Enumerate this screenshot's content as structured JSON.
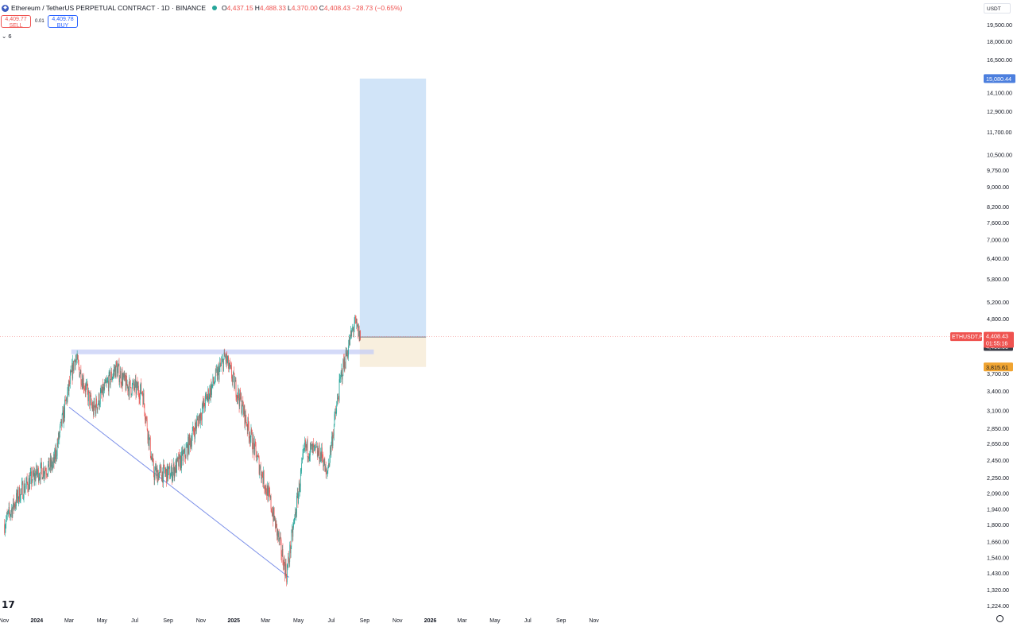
{
  "header": {
    "symbol_title": "Ethereum / TetherUS PERPETUAL CONTRACT · 1D · BINANCE",
    "open_label": "O",
    "open": "4,437.15",
    "high_label": "H",
    "high": "4,488.33",
    "low_label": "L",
    "low": "4,370.00",
    "close_label": "C",
    "close": "4,408.43",
    "change": "−28.73 (−0.65%)"
  },
  "trade": {
    "sell_price": "4,409.77",
    "sell_label": "SELL",
    "spread": "0.01",
    "buy_price": "4,409.78",
    "buy_label": "BUY"
  },
  "indicators_count": "6",
  "currency": "USDT",
  "colors": {
    "up": "#26a69a",
    "down": "#ef5350",
    "profit_zone": "#cfe3f8",
    "loss_zone": "#f8eedc",
    "trendline": "#7b8fe8"
  },
  "price_axis": {
    "ticks": [
      "19,500.00",
      "18,000.00",
      "16,500.00",
      "14,100.00",
      "12,900.00",
      "11,700.00",
      "10,500.00",
      "9,750.00",
      "9,000.00",
      "8,200.00",
      "7,600.00",
      "7,000.00",
      "6,400.00",
      "5,800.00",
      "5,200.00",
      "4,800.00",
      "3,700.00",
      "3,400.00",
      "3,100.00",
      "2,850.00",
      "2,650.00",
      "2,450.00",
      "2,250.00",
      "2,090.00",
      "1,940.00",
      "1,800.00",
      "1,660.00",
      "1,540.00",
      "1,430.00",
      "1,320.00",
      "1,224.00"
    ],
    "target_label": "15,080.44",
    "last_symbol": "ETHUSDT.P",
    "last_price": "4,408.43",
    "countdown": "01:55:16",
    "entry_label": "4,400.00",
    "stop_label": "3,815.61"
  },
  "time_axis": {
    "ticks": [
      "Nov",
      "2024",
      "Mar",
      "May",
      "Jul",
      "Sep",
      "Nov",
      "2025",
      "Mar",
      "May",
      "Jul",
      "Sep",
      "Nov",
      "2026",
      "Mar",
      "May",
      "Jul",
      "Sep",
      "Nov"
    ]
  },
  "chart_data": {
    "type": "candlestick",
    "symbol": "ETHUSDT.P",
    "interval": "1D",
    "exchange": "BINANCE",
    "y_scale": "log",
    "ylim": [
      1224,
      19500
    ],
    "x_range": [
      "2023-11",
      "2026-11"
    ],
    "series": [
      {
        "name": "ETHUSDT.P",
        "dates": [
          "2023-11-01",
          "2023-12-01",
          "2024-01-01",
          "2024-02-01",
          "2024-03-12",
          "2024-04-15",
          "2024-05-27",
          "2024-06-15",
          "2024-07-15",
          "2024-08-05",
          "2024-09-06",
          "2024-10-01",
          "2024-11-12",
          "2024-12-16",
          "2025-01-15",
          "2025-02-03",
          "2025-03-10",
          "2025-04-09",
          "2025-05-13",
          "2025-06-15",
          "2025-06-22",
          "2025-07-20",
          "2025-08-13",
          "2025-08-24"
        ],
        "close": [
          1800,
          2100,
          2300,
          2400,
          4000,
          3100,
          3800,
          3500,
          3400,
          2300,
          2300,
          2500,
          3300,
          4000,
          3200,
          2700,
          2000,
          1420,
          2600,
          2500,
          2250,
          3700,
          4700,
          4408.43
        ]
      }
    ],
    "annotations": {
      "long_position": {
        "entry": 4400.0,
        "target": 15080.44,
        "stop": 3815.61
      },
      "resistance_zone": 4100,
      "trendline_points": [
        [
          "2024-03-01",
          3150
        ],
        [
          "2025-04-09",
          1400
        ]
      ],
      "last_price": 4408.43
    }
  }
}
